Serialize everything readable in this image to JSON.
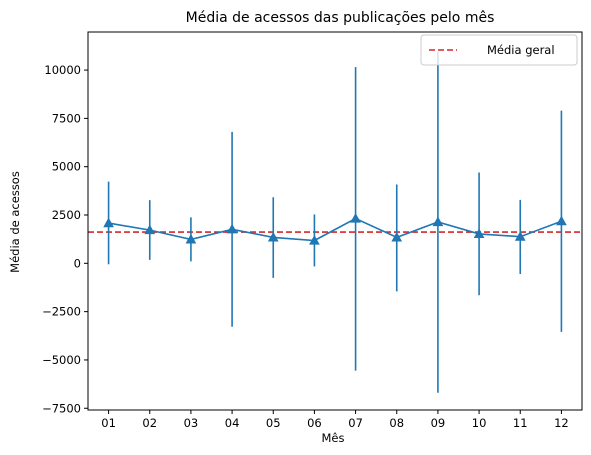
{
  "chart_data": {
    "type": "line",
    "title": "Média de acessos das publicações pelo mês",
    "xlabel": "Mês",
    "ylabel": "Média de acessos",
    "categories": [
      "01",
      "02",
      "03",
      "04",
      "05",
      "06",
      "07",
      "08",
      "09",
      "10",
      "11",
      "12"
    ],
    "series": [
      {
        "values": [
          2080,
          1720,
          1240,
          1760,
          1340,
          1180,
          2320,
          1340,
          2140,
          1520,
          1380,
          2180
        ],
        "error_low": [
          -50,
          180,
          100,
          -3280,
          -750,
          -160,
          -5550,
          -1450,
          -6700,
          -1650,
          -550,
          -3550
        ],
        "error_high": [
          4230,
          3270,
          2380,
          6800,
          3420,
          2530,
          10150,
          4080,
          10950,
          4700,
          3280,
          7900
        ],
        "color": "#1f77b4",
        "marker": "triangle"
      }
    ],
    "reference_line": {
      "name": "Média geral",
      "value": 1620,
      "color": "#d62728",
      "style": "dashed"
    },
    "yticks": [
      -7500,
      -5000,
      -2500,
      0,
      2500,
      5000,
      7500,
      10000
    ],
    "ytick_labels": [
      "−7500",
      "−5000",
      "−2500",
      "0",
      "2500",
      "5000",
      "7500",
      "10000"
    ],
    "ylim": [
      -7590,
      11970
    ],
    "grid": false,
    "legend_position": "top-right"
  }
}
